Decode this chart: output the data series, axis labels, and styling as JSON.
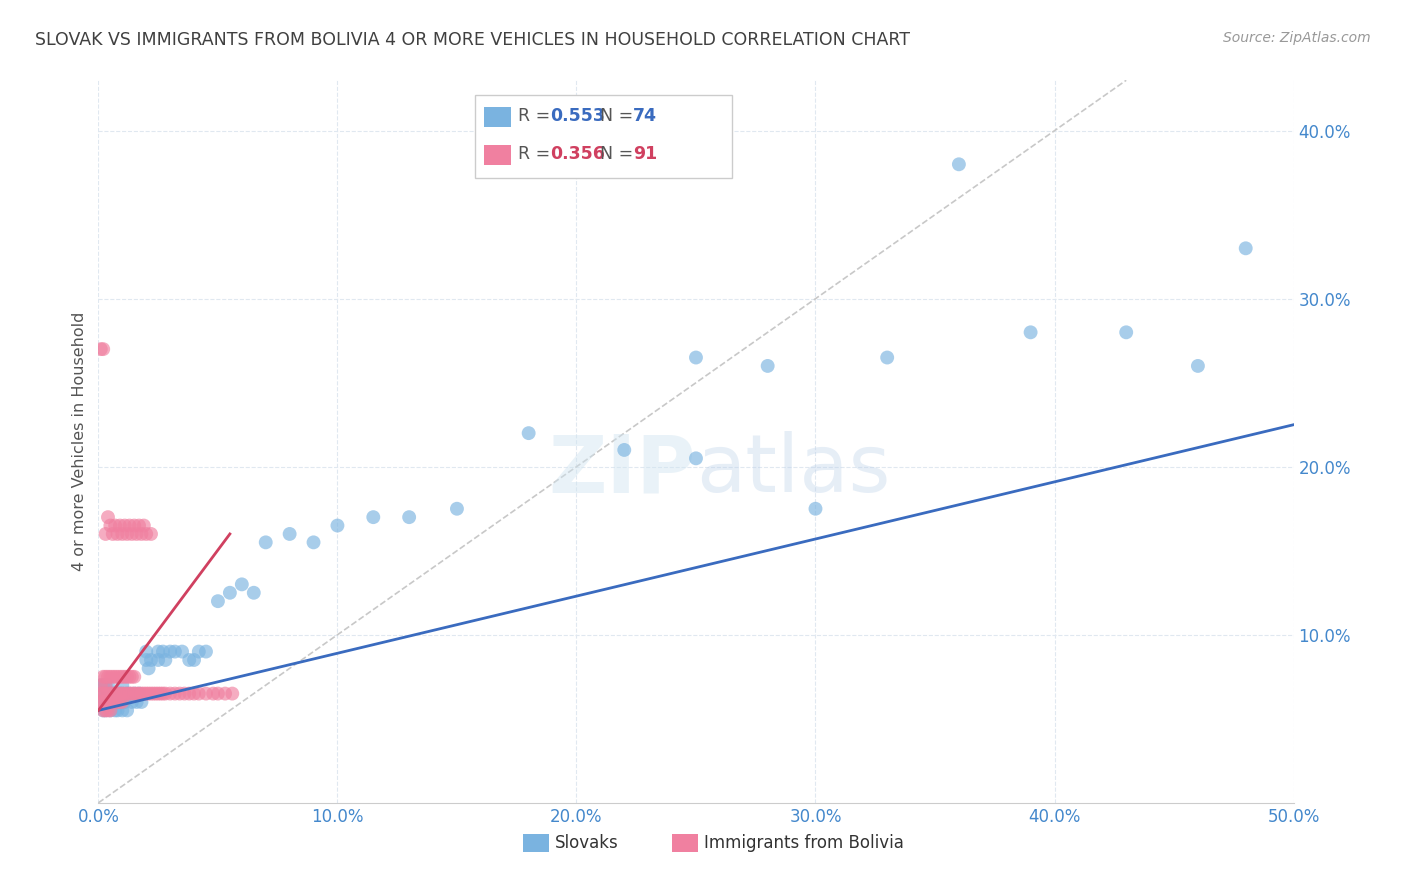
{
  "title": "SLOVAK VS IMMIGRANTS FROM BOLIVIA 4 OR MORE VEHICLES IN HOUSEHOLD CORRELATION CHART",
  "source": "Source: ZipAtlas.com",
  "ylabel": "4 or more Vehicles in Household",
  "xlim": [
    0.0,
    0.5
  ],
  "ylim": [
    0.0,
    0.43
  ],
  "xticks": [
    0.0,
    0.1,
    0.2,
    0.3,
    0.4,
    0.5
  ],
  "yticks": [
    0.1,
    0.2,
    0.3,
    0.4
  ],
  "xticklabels": [
    "0.0%",
    "10.0%",
    "20.0%",
    "30.0%",
    "40.0%",
    "50.0%"
  ],
  "yticklabels": [
    "10.0%",
    "20.0%",
    "30.0%",
    "40.0%"
  ],
  "Slovak_color": "#7ab3e0",
  "Bolivia_color": "#f080a0",
  "Slovak_line_color": "#3a6bbf",
  "Bolivia_line_color": "#d04060",
  "diagonal_color": "#c8c8c8",
  "background_color": "#ffffff",
  "grid_color": "#e0e8f0",
  "title_color": "#404040",
  "axis_color": "#4488cc",
  "Slovak_line_x0": 0.0,
  "Slovak_line_y0": 0.055,
  "Slovak_line_x1": 0.5,
  "Slovak_line_y1": 0.225,
  "Bolivia_line_x0": 0.0,
  "Bolivia_line_y0": 0.055,
  "Bolivia_line_x1": 0.055,
  "Bolivia_line_y1": 0.16,
  "Slovak_x": [
    0.001,
    0.001,
    0.002,
    0.002,
    0.002,
    0.003,
    0.003,
    0.003,
    0.003,
    0.004,
    0.004,
    0.004,
    0.005,
    0.005,
    0.005,
    0.006,
    0.006,
    0.007,
    0.007,
    0.007,
    0.008,
    0.008,
    0.009,
    0.009,
    0.01,
    0.01,
    0.01,
    0.011,
    0.012,
    0.012,
    0.013,
    0.014,
    0.015,
    0.016,
    0.017,
    0.018,
    0.02,
    0.02,
    0.021,
    0.022,
    0.025,
    0.025,
    0.027,
    0.028,
    0.03,
    0.032,
    0.035,
    0.038,
    0.04,
    0.042,
    0.045,
    0.05,
    0.055,
    0.06,
    0.065,
    0.07,
    0.08,
    0.09,
    0.1,
    0.115,
    0.13,
    0.15,
    0.18,
    0.22,
    0.25,
    0.28,
    0.33,
    0.36,
    0.39,
    0.43,
    0.46,
    0.48,
    0.25,
    0.3
  ],
  "Slovak_y": [
    0.07,
    0.06,
    0.065,
    0.07,
    0.055,
    0.065,
    0.06,
    0.055,
    0.07,
    0.06,
    0.065,
    0.07,
    0.06,
    0.055,
    0.065,
    0.065,
    0.06,
    0.065,
    0.055,
    0.06,
    0.065,
    0.055,
    0.065,
    0.06,
    0.07,
    0.065,
    0.055,
    0.06,
    0.065,
    0.055,
    0.065,
    0.06,
    0.065,
    0.06,
    0.065,
    0.06,
    0.085,
    0.09,
    0.08,
    0.085,
    0.09,
    0.085,
    0.09,
    0.085,
    0.09,
    0.09,
    0.09,
    0.085,
    0.085,
    0.09,
    0.09,
    0.12,
    0.125,
    0.13,
    0.125,
    0.155,
    0.16,
    0.155,
    0.165,
    0.17,
    0.17,
    0.175,
    0.22,
    0.21,
    0.265,
    0.26,
    0.265,
    0.38,
    0.28,
    0.28,
    0.26,
    0.33,
    0.205,
    0.175
  ],
  "Bolivia_x": [
    0.001,
    0.001,
    0.001,
    0.002,
    0.002,
    0.002,
    0.002,
    0.003,
    0.003,
    0.003,
    0.003,
    0.003,
    0.004,
    0.004,
    0.004,
    0.004,
    0.005,
    0.005,
    0.005,
    0.005,
    0.006,
    0.006,
    0.006,
    0.007,
    0.007,
    0.007,
    0.008,
    0.008,
    0.008,
    0.009,
    0.009,
    0.009,
    0.01,
    0.01,
    0.01,
    0.011,
    0.011,
    0.012,
    0.012,
    0.013,
    0.013,
    0.014,
    0.014,
    0.015,
    0.015,
    0.016,
    0.017,
    0.018,
    0.019,
    0.02,
    0.021,
    0.022,
    0.023,
    0.024,
    0.025,
    0.026,
    0.027,
    0.028,
    0.03,
    0.032,
    0.034,
    0.036,
    0.038,
    0.04,
    0.042,
    0.045,
    0.048,
    0.05,
    0.053,
    0.056,
    0.001,
    0.002,
    0.003,
    0.004,
    0.005,
    0.006,
    0.007,
    0.008,
    0.009,
    0.01,
    0.011,
    0.012,
    0.013,
    0.014,
    0.015,
    0.016,
    0.017,
    0.018,
    0.019,
    0.02,
    0.022
  ],
  "Bolivia_y": [
    0.07,
    0.065,
    0.06,
    0.075,
    0.065,
    0.06,
    0.055,
    0.075,
    0.065,
    0.06,
    0.055,
    0.07,
    0.065,
    0.075,
    0.06,
    0.055,
    0.065,
    0.06,
    0.075,
    0.055,
    0.065,
    0.075,
    0.06,
    0.065,
    0.075,
    0.06,
    0.065,
    0.075,
    0.06,
    0.065,
    0.075,
    0.06,
    0.065,
    0.075,
    0.06,
    0.065,
    0.075,
    0.065,
    0.075,
    0.065,
    0.075,
    0.065,
    0.075,
    0.065,
    0.075,
    0.065,
    0.065,
    0.065,
    0.065,
    0.065,
    0.065,
    0.065,
    0.065,
    0.065,
    0.065,
    0.065,
    0.065,
    0.065,
    0.065,
    0.065,
    0.065,
    0.065,
    0.065,
    0.065,
    0.065,
    0.065,
    0.065,
    0.065,
    0.065,
    0.065,
    0.27,
    0.27,
    0.16,
    0.17,
    0.165,
    0.16,
    0.165,
    0.16,
    0.165,
    0.16,
    0.165,
    0.16,
    0.165,
    0.16,
    0.165,
    0.16,
    0.165,
    0.16,
    0.165,
    0.16,
    0.16
  ]
}
